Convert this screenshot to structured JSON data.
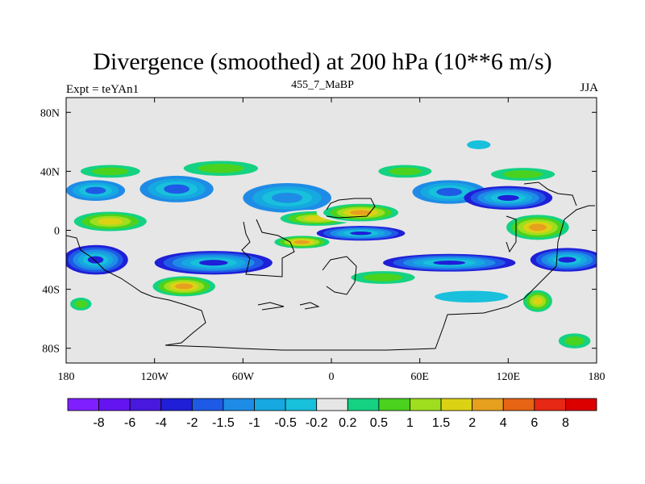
{
  "chart_data": {
    "type": "heatmap",
    "title": "Divergence (smoothed) at 200 hPa (10**6 m/s)",
    "subtitle_left": "Expt = teYAn1",
    "subtitle_center": "455_7_MaBP",
    "subtitle_right": "JJA",
    "x_ticks": [
      "180",
      "120W",
      "60W",
      "0",
      "60E",
      "120E",
      "180"
    ],
    "y_ticks": [
      "80N",
      "40N",
      "0",
      "40S",
      "80S"
    ],
    "xlim": [
      -180,
      180
    ],
    "ylim": [
      -90,
      90
    ],
    "colorbar_labels": [
      "-8",
      "-6",
      "-4",
      "-2",
      "-1.5",
      "-1",
      "-0.5",
      "-0.2",
      "0.2",
      "0.5",
      "1",
      "1.5",
      "2",
      "4",
      "6",
      "8"
    ],
    "colors": [
      "#7f1fff",
      "#6414f0",
      "#4818de",
      "#1f1fd8",
      "#1e5ae6",
      "#1e8ce6",
      "#16a8e0",
      "#18c0dc",
      "#e6e6e6",
      "#14d282",
      "#4ad21e",
      "#9ede1e",
      "#dcd214",
      "#e6a01e",
      "#e66414",
      "#e62814",
      "#dc0000"
    ],
    "background_color": "#e6e6e6",
    "fields": [
      {
        "lon": -160,
        "lat": 27,
        "rx": 20,
        "ry": 7,
        "value": -1.5
      },
      {
        "lon": -105,
        "lat": 28,
        "rx": 25,
        "ry": 9,
        "value": -1.5
      },
      {
        "lon": -30,
        "lat": 22,
        "rx": 30,
        "ry": 10,
        "value": -1.2
      },
      {
        "lon": 80,
        "lat": 26,
        "rx": 25,
        "ry": 8,
        "value": -1.5
      },
      {
        "lon": 120,
        "lat": 22,
        "rx": 30,
        "ry": 8,
        "value": -2.5
      },
      {
        "lon": -150,
        "lat": 40,
        "rx": 28,
        "ry": 6,
        "value": 0.8
      },
      {
        "lon": -75,
        "lat": 42,
        "rx": 35,
        "ry": 7,
        "value": 0.8
      },
      {
        "lon": 50,
        "lat": 40,
        "rx": 25,
        "ry": 6,
        "value": 0.7
      },
      {
        "lon": 130,
        "lat": 38,
        "rx": 30,
        "ry": 6,
        "value": 0.8
      },
      {
        "lon": 100,
        "lat": 58,
        "rx": 8,
        "ry": 3,
        "value": -0.3
      },
      {
        "lon": -150,
        "lat": 6,
        "rx": 30,
        "ry": 8,
        "value": 1.8
      },
      {
        "lon": -10,
        "lat": 8,
        "rx": 30,
        "ry": 6,
        "value": 1.8
      },
      {
        "lon": 20,
        "lat": 12,
        "rx": 30,
        "ry": 7,
        "value": 3.0
      },
      {
        "lon": 140,
        "lat": 2,
        "rx": 25,
        "ry": 10,
        "value": 3.5
      },
      {
        "lon": -20,
        "lat": -8,
        "rx": 22,
        "ry": 5,
        "value": 4.0
      },
      {
        "lon": 20,
        "lat": -2,
        "rx": 30,
        "ry": 5,
        "value": -2.5
      },
      {
        "lon": -80,
        "lat": -22,
        "rx": 40,
        "ry": 8,
        "value": -3.0
      },
      {
        "lon": -160,
        "lat": -20,
        "rx": 22,
        "ry": 10,
        "value": -2.5
      },
      {
        "lon": 80,
        "lat": -22,
        "rx": 45,
        "ry": 6,
        "value": -2.5
      },
      {
        "lon": 160,
        "lat": -20,
        "rx": 25,
        "ry": 8,
        "value": -2.5
      },
      {
        "lon": -100,
        "lat": -38,
        "rx": 25,
        "ry": 8,
        "value": 2.5
      },
      {
        "lon": 35,
        "lat": -32,
        "rx": 30,
        "ry": 6,
        "value": 0.8
      },
      {
        "lon": 140,
        "lat": -48,
        "rx": 12,
        "ry": 9,
        "value": 2.0
      },
      {
        "lon": -170,
        "lat": -50,
        "rx": 10,
        "ry": 6,
        "value": 0.8
      },
      {
        "lon": 95,
        "lat": -45,
        "rx": 25,
        "ry": 4,
        "value": -0.4
      },
      {
        "lon": 165,
        "lat": -75,
        "rx": 15,
        "ry": 7,
        "value": 0.8
      }
    ]
  }
}
